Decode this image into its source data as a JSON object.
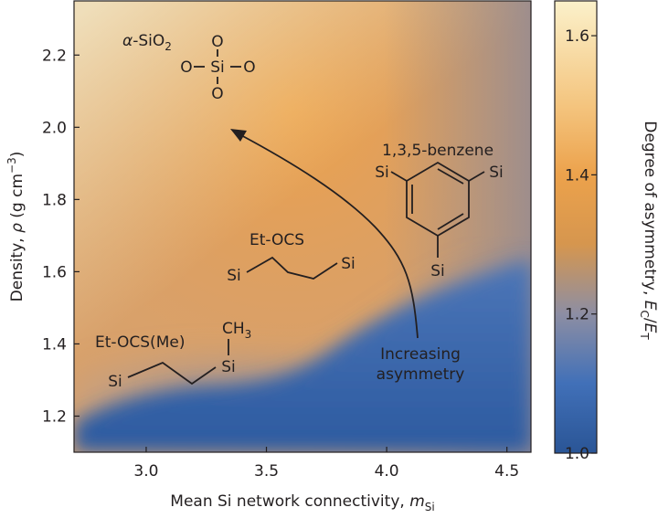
{
  "chart_data": {
    "type": "heatmap",
    "title": "",
    "x": {
      "label_text": "Mean Si network connectivity, ",
      "label_var": "m",
      "label_sub": "Si",
      "range": [
        2.7,
        4.6
      ],
      "ticks": [
        3.0,
        3.5,
        4.0,
        4.5
      ],
      "tick_labels": [
        "3.0",
        "3.5",
        "4.0",
        "4.5"
      ]
    },
    "y": {
      "label_text": "Density, ",
      "label_var": "ρ",
      "label_unit": " (g cm",
      "label_sup": "−3",
      "label_close": ")",
      "range": [
        1.1,
        2.35
      ],
      "ticks": [
        1.2,
        1.4,
        1.6,
        1.8,
        2.0,
        2.2
      ],
      "tick_labels": [
        "1.2",
        "1.4",
        "1.6",
        "1.8",
        "2.0",
        "2.2"
      ]
    },
    "colorbar": {
      "label_text": "Degree of asymmetry, ",
      "label_var1": "E",
      "label_sub1": "C",
      "label_slash": "/",
      "label_var2": "E",
      "label_sub2": "T",
      "range": [
        1.0,
        1.65
      ],
      "ticks": [
        1.0,
        1.2,
        1.4,
        1.6
      ],
      "tick_labels": [
        "1.0",
        "1.2",
        "1.4",
        "1.6"
      ],
      "stops": [
        {
          "value": 1.0,
          "color": "#2a5596"
        },
        {
          "value": 1.1,
          "color": "#4170b8"
        },
        {
          "value": 1.2,
          "color": "#8d8ea3"
        },
        {
          "value": 1.3,
          "color": "#d6964e"
        },
        {
          "value": 1.4,
          "color": "#eca24c"
        },
        {
          "value": 1.5,
          "color": "#f4c57f"
        },
        {
          "value": 1.65,
          "color": "#fbf1cb"
        }
      ]
    },
    "annotations": [
      {
        "text": "α-SiO",
        "sub": "2",
        "x": 2.83,
        "y": 2.23
      },
      {
        "text": "1,3,5-benzene",
        "x": 3.95,
        "y": 1.93
      },
      {
        "text": "Et-OCS",
        "x": 3.53,
        "y": 1.67
      },
      {
        "text": "Et-OCS(Me)",
        "x": 2.92,
        "y": 1.39
      },
      {
        "text": "Increasing",
        "x": 4.14,
        "y": 1.37
      },
      {
        "text": "asymmetry",
        "x": 4.14,
        "y": 1.31
      }
    ],
    "arrow": {
      "from": [
        4.13,
        1.39
      ],
      "to": [
        3.33,
        2.0
      ],
      "via": [
        4.13,
        1.75
      ]
    },
    "molecule_atoms": {
      "silica": [
        "O",
        "O",
        "Si",
        "O",
        "O"
      ],
      "benzene": [
        "Si",
        "Si",
        "Si"
      ],
      "etocs": [
        "Si",
        "Si"
      ],
      "etocs_me": [
        "Si",
        "Si",
        "CH",
        "3"
      ]
    }
  }
}
